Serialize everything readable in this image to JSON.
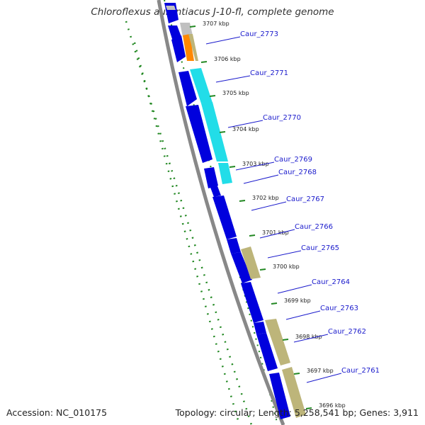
{
  "title": "Chloroflexus aurantiacus J-10-fl, complete genome",
  "footer": {
    "accession": "Accession: NC_010175",
    "summary": "Topology: circular; Length: 5,258,541 bp; Genes: 3,911"
  },
  "colors": {
    "cds_reverse": "#0000dd",
    "gene_tan": "#bdb57a",
    "gene_cyan": "#22dde8",
    "gene_orange": "#ff8800",
    "gene_grey": "#c0c0c0",
    "backbone": "#888888",
    "gc_skew": "#228822",
    "label": "#1a1acc"
  },
  "kbp_ticks": [
    "3707 kbp",
    "3706 kbp",
    "3705 kbp",
    "3704 kbp",
    "3703 kbp",
    "3702 kbp",
    "3701 kbp",
    "3700 kbp",
    "3699 kbp",
    "3698 kbp",
    "3697 kbp",
    "3696 kbp"
  ],
  "gene_labels": [
    "Caur_2773",
    "Caur_2771",
    "Caur_2770",
    "Caur_2769",
    "Caur_2768",
    "Caur_2767",
    "Caur_2766",
    "Caur_2765",
    "Caur_2764",
    "Caur_2763",
    "Caur_2762",
    "Caur_2761"
  ]
}
